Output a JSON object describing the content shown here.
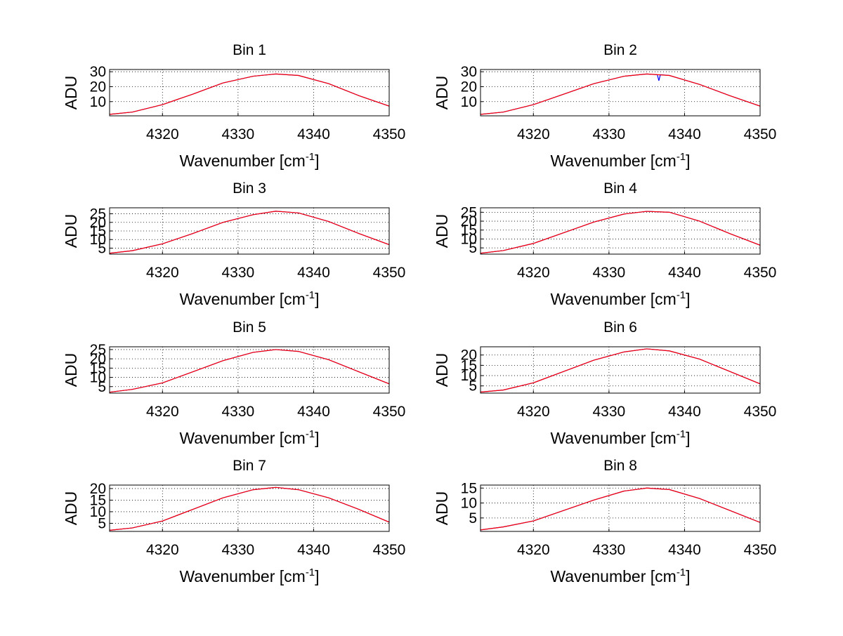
{
  "chart_data": [
    {
      "type": "line",
      "title": "Bin 1",
      "xlabel": "Wavenumber [cm",
      "xlabel_sup": "-1",
      "xlabel_end": "]",
      "ylabel": "ADU",
      "xlim": [
        4313,
        4350
      ],
      "ylim": [
        0.5,
        31.5
      ],
      "xticks": [
        "4320",
        "4330",
        "4340",
        "4350"
      ],
      "yticks": [
        "10",
        "20",
        "30"
      ],
      "grid": true,
      "series": [
        {
          "color": "#0000ff",
          "x": [
            4313,
            4316,
            4320,
            4324,
            4328,
            4332,
            4335,
            4338,
            4342,
            4346,
            4350
          ],
          "values": [
            1.5,
            3,
            8,
            15,
            22.5,
            27,
            28.5,
            27.5,
            22,
            14,
            7
          ]
        },
        {
          "color": "#ff0000",
          "x": [
            4313,
            4316,
            4320,
            4324,
            4328,
            4332,
            4335,
            4338,
            4342,
            4346,
            4350
          ],
          "values": [
            1.5,
            3,
            8,
            15,
            22.5,
            27,
            28.5,
            27.5,
            22,
            14,
            7
          ]
        }
      ]
    },
    {
      "type": "line",
      "title": "Bin 2",
      "xlabel": "Wavenumber [cm",
      "xlabel_sup": "-1",
      "xlabel_end": "]",
      "ylabel": "ADU",
      "xlim": [
        4313,
        4350
      ],
      "ylim": [
        0.5,
        31.5
      ],
      "xticks": [
        "4320",
        "4330",
        "4340",
        "4350"
      ],
      "yticks": [
        "10",
        "20",
        "30"
      ],
      "grid": true,
      "series": [
        {
          "color": "#0000ff",
          "x": [
            4313,
            4316,
            4320,
            4324,
            4328,
            4332,
            4335,
            4336.4,
            4336.6,
            4336.8,
            4338,
            4342,
            4346,
            4350
          ],
          "values": [
            1.5,
            3,
            8,
            15,
            22,
            27,
            28.5,
            28,
            24,
            28,
            27.5,
            21.5,
            14,
            7
          ]
        },
        {
          "color": "#ff0000",
          "x": [
            4313,
            4316,
            4320,
            4324,
            4328,
            4332,
            4335,
            4338,
            4342,
            4346,
            4350
          ],
          "values": [
            1.5,
            3,
            8,
            15,
            22,
            27,
            28.5,
            27.5,
            21.5,
            14,
            7
          ]
        }
      ]
    },
    {
      "type": "line",
      "title": "Bin 3",
      "xlabel": "Wavenumber [cm",
      "xlabel_sup": "-1",
      "xlabel_end": "]",
      "ylabel": "ADU",
      "xlim": [
        4313,
        4350
      ],
      "ylim": [
        1.5,
        28.5
      ],
      "xticks": [
        "4320",
        "4330",
        "4340",
        "4350"
      ],
      "yticks": [
        "5",
        "10",
        "15",
        "20",
        "25"
      ],
      "grid": true,
      "series": [
        {
          "color": "#0000ff",
          "x": [
            4313,
            4316,
            4320,
            4324,
            4328,
            4332,
            4335,
            4338,
            4342,
            4346,
            4350
          ],
          "values": [
            2,
            3.5,
            7.5,
            13.5,
            20,
            24.5,
            26.5,
            25.5,
            20.5,
            13.5,
            7
          ]
        },
        {
          "color": "#ff0000",
          "x": [
            4313,
            4316,
            4320,
            4324,
            4328,
            4332,
            4335,
            4338,
            4342,
            4346,
            4350
          ],
          "values": [
            2,
            3.5,
            7.5,
            13.5,
            20,
            24.5,
            26.5,
            25.5,
            20.5,
            13.5,
            7
          ]
        }
      ]
    },
    {
      "type": "line",
      "title": "Bin 4",
      "xlabel": "Wavenumber [cm",
      "xlabel_sup": "-1",
      "xlabel_end": "]",
      "ylabel": "ADU",
      "xlim": [
        4313,
        4350
      ],
      "ylim": [
        1.5,
        27.5
      ],
      "xticks": [
        "4320",
        "4330",
        "4340",
        "4350"
      ],
      "yticks": [
        "5",
        "10",
        "15",
        "20",
        "25"
      ],
      "grid": true,
      "series": [
        {
          "color": "#0000ff",
          "x": [
            4313,
            4316,
            4320,
            4324,
            4328,
            4332,
            4335,
            4338,
            4342,
            4346,
            4350
          ],
          "values": [
            2,
            3.5,
            7.5,
            13.5,
            19.5,
            24,
            25.5,
            25,
            20,
            13,
            6.5
          ]
        },
        {
          "color": "#ff0000",
          "x": [
            4313,
            4316,
            4320,
            4324,
            4328,
            4332,
            4335,
            4338,
            4342,
            4346,
            4350
          ],
          "values": [
            2,
            3.5,
            7.5,
            13.5,
            19.5,
            24,
            25.5,
            25,
            20,
            13,
            6.5
          ]
        }
      ]
    },
    {
      "type": "line",
      "title": "Bin 5",
      "xlabel": "Wavenumber [cm",
      "xlabel_sup": "-1",
      "xlabel_end": "]",
      "ylabel": "ADU",
      "xlim": [
        4313,
        4350
      ],
      "ylim": [
        1.5,
        26.5
      ],
      "xticks": [
        "4320",
        "4330",
        "4340",
        "4350"
      ],
      "yticks": [
        "5",
        "10",
        "15",
        "20",
        "25"
      ],
      "grid": true,
      "series": [
        {
          "color": "#0000ff",
          "x": [
            4313,
            4316,
            4320,
            4324,
            4328,
            4332,
            4335,
            4338,
            4342,
            4346,
            4350
          ],
          "values": [
            2,
            3.5,
            7,
            13,
            19,
            23.5,
            25,
            24,
            19.5,
            13,
            6.5
          ]
        },
        {
          "color": "#ff0000",
          "x": [
            4313,
            4316,
            4320,
            4324,
            4328,
            4332,
            4335,
            4338,
            4342,
            4346,
            4350
          ],
          "values": [
            2,
            3.5,
            7,
            13,
            19,
            23.5,
            25,
            24,
            19.5,
            13,
            6.5
          ]
        }
      ]
    },
    {
      "type": "line",
      "title": "Bin 6",
      "xlabel": "Wavenumber [cm",
      "xlabel_sup": "-1",
      "xlabel_end": "]",
      "ylabel": "ADU",
      "xlim": [
        4313,
        4350
      ],
      "ylim": [
        1.5,
        24
      ],
      "xticks": [
        "4320",
        "4330",
        "4340",
        "4350"
      ],
      "yticks": [
        "5",
        "10",
        "15",
        "20"
      ],
      "grid": true,
      "series": [
        {
          "color": "#0000ff",
          "x": [
            4313,
            4316,
            4320,
            4324,
            4328,
            4332,
            4335,
            4338,
            4342,
            4346,
            4350
          ],
          "values": [
            2,
            3,
            6.5,
            12,
            17.5,
            21.5,
            23,
            22,
            18,
            12,
            6
          ]
        },
        {
          "color": "#ff0000",
          "x": [
            4313,
            4316,
            4320,
            4324,
            4328,
            4332,
            4335,
            4338,
            4342,
            4346,
            4350
          ],
          "values": [
            2,
            3,
            6.5,
            12,
            17.5,
            21.5,
            23,
            22,
            18,
            12,
            6
          ]
        }
      ]
    },
    {
      "type": "line",
      "title": "Bin 7",
      "xlabel": "Wavenumber [cm",
      "xlabel_sup": "-1",
      "xlabel_end": "]",
      "ylabel": "ADU",
      "xlim": [
        4313,
        4350
      ],
      "ylim": [
        1.5,
        21.5
      ],
      "xticks": [
        "4320",
        "4330",
        "4340",
        "4350"
      ],
      "yticks": [
        "5",
        "10",
        "15",
        "20"
      ],
      "grid": true,
      "series": [
        {
          "color": "#0000ff",
          "x": [
            4313,
            4316,
            4320,
            4324,
            4328,
            4332,
            4335,
            4338,
            4342,
            4346,
            4350
          ],
          "values": [
            2,
            3,
            6,
            11,
            16,
            19.5,
            20.5,
            19.5,
            16,
            11,
            5.5
          ]
        },
        {
          "color": "#ff0000",
          "x": [
            4313,
            4316,
            4320,
            4324,
            4328,
            4332,
            4335,
            4338,
            4342,
            4346,
            4350
          ],
          "values": [
            2,
            3,
            6,
            11,
            16,
            19.5,
            20.5,
            19.5,
            16,
            11,
            5.5
          ]
        }
      ]
    },
    {
      "type": "line",
      "title": "Bin 8",
      "xlabel": "Wavenumber [cm",
      "xlabel_sup": "-1",
      "xlabel_end": "]",
      "ylabel": "ADU",
      "xlim": [
        4313,
        4350
      ],
      "ylim": [
        0.5,
        16
      ],
      "xticks": [
        "4320",
        "4330",
        "4340",
        "4350"
      ],
      "yticks": [
        "5",
        "10",
        "15"
      ],
      "grid": true,
      "series": [
        {
          "color": "#0000ff",
          "x": [
            4313,
            4316,
            4320,
            4324,
            4328,
            4332,
            4335,
            4338,
            4342,
            4346,
            4350
          ],
          "values": [
            1,
            2,
            4,
            7.5,
            11,
            14,
            15,
            14.5,
            11.5,
            7.5,
            3.5
          ]
        },
        {
          "color": "#ff0000",
          "x": [
            4313,
            4316,
            4320,
            4324,
            4328,
            4332,
            4335,
            4338,
            4342,
            4346,
            4350
          ],
          "values": [
            1,
            2,
            4,
            7.5,
            11,
            14,
            15,
            14.5,
            11.5,
            7.5,
            3.5
          ]
        }
      ]
    }
  ]
}
